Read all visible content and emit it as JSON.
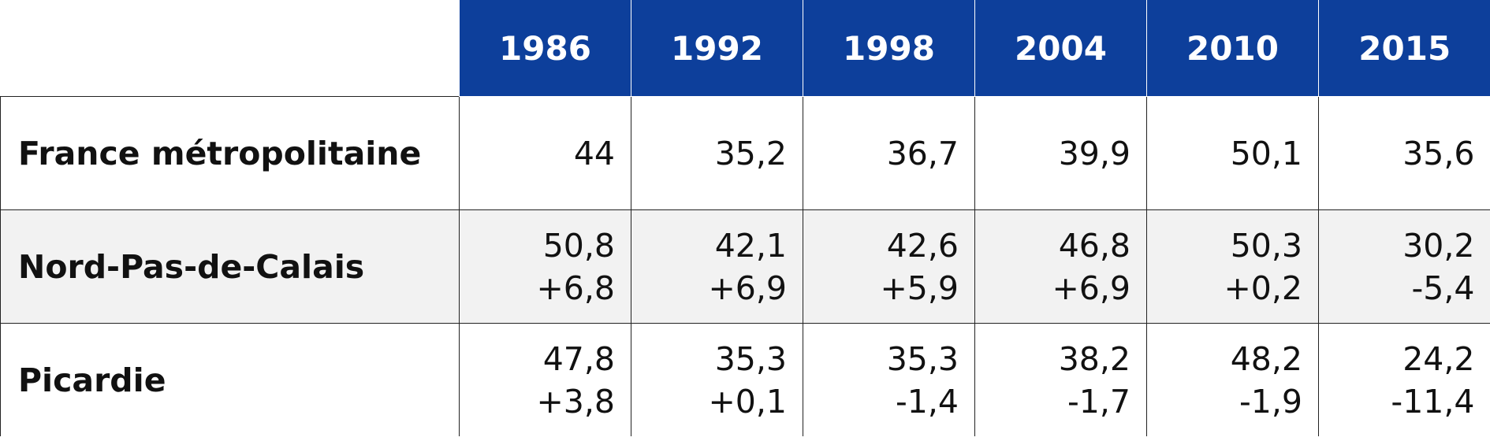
{
  "table": {
    "columns": [
      "1986",
      "1992",
      "1998",
      "2004",
      "2010",
      "2015"
    ],
    "rows": [
      {
        "label": "France métropolitaine",
        "values": [
          [
            "44"
          ],
          [
            "35,2"
          ],
          [
            "36,7"
          ],
          [
            "39,9"
          ],
          [
            "50,1"
          ],
          [
            "35,6"
          ]
        ]
      },
      {
        "label": "Nord-Pas-de-Calais",
        "values": [
          [
            "50,8",
            "+6,8"
          ],
          [
            "42,1",
            "+6,9"
          ],
          [
            "42,6",
            "+5,9"
          ],
          [
            "46,8",
            "+6,9"
          ],
          [
            "50,3",
            "+0,2"
          ],
          [
            "30,2",
            "-5,4"
          ]
        ]
      },
      {
        "label": "Picardie",
        "values": [
          [
            "47,8",
            "+3,8"
          ],
          [
            "35,3",
            "+0,1"
          ],
          [
            "35,3",
            "-1,4"
          ],
          [
            "38,2",
            "-1,7"
          ],
          [
            "48,2",
            "-1,9"
          ],
          [
            "24,2",
            "-11,4"
          ]
        ]
      }
    ]
  },
  "colors": {
    "header_bg": "#0d3f9b",
    "header_text": "#ffffff",
    "alt_row_bg": "#f2f2f2"
  }
}
